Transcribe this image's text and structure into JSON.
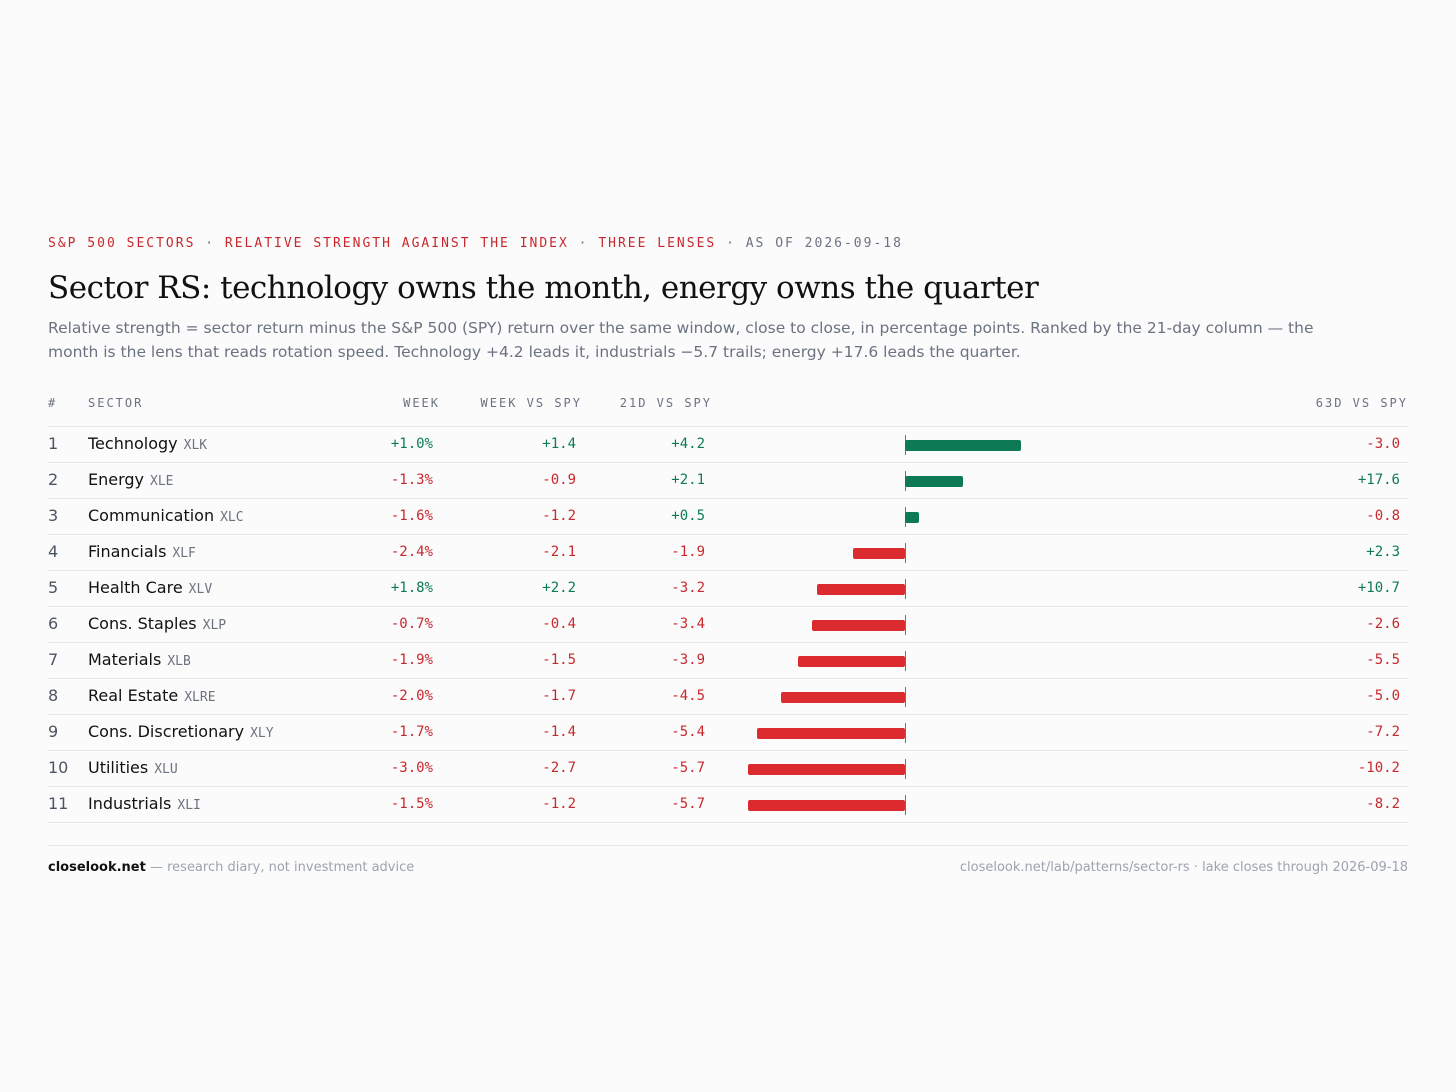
{
  "header": {
    "eyebrow_parts": [
      "S&P 500 SECTORS",
      "RELATIVE STRENGTH AGAINST THE INDEX",
      "THREE LENSES"
    ],
    "separator": "·",
    "as_of": "AS OF 2026-09-18",
    "title": "Sector RS: technology owns the month, energy owns the quarter",
    "subtitle": "Relative strength = sector return minus the S&P 500 (SPY) return over the same window, close to close, in percentage points. Ranked by the 21-day column — the month is the lens that reads rotation speed. Technology +4.2 leads it, industrials −5.7 trails; energy +17.6 leads the quarter."
  },
  "columns": {
    "rank": "#",
    "sector": "SECTOR",
    "week": "WEEK",
    "week_vs_spy": "WEEK VS SPY",
    "d21_vs_spy": "21D VS SPY",
    "d63_vs_spy": "63D VS SPY"
  },
  "chart_data": {
    "type": "table",
    "bar_column": "21d_vs_spy",
    "rows": [
      {
        "rank": "1",
        "sector": "Technology",
        "ticker": "XLK",
        "week": "+1.0%",
        "week_vs_spy": "+1.4",
        "d21": "+4.2",
        "d63": "-3.0",
        "d21_value": 4.2
      },
      {
        "rank": "2",
        "sector": "Energy",
        "ticker": "XLE",
        "week": "-1.3%",
        "week_vs_spy": "-0.9",
        "d21": "+2.1",
        "d63": "+17.6",
        "d21_value": 2.1
      },
      {
        "rank": "3",
        "sector": "Communication",
        "ticker": "XLC",
        "week": "-1.6%",
        "week_vs_spy": "-1.2",
        "d21": "+0.5",
        "d63": "-0.8",
        "d21_value": 0.5
      },
      {
        "rank": "4",
        "sector": "Financials",
        "ticker": "XLF",
        "week": "-2.4%",
        "week_vs_spy": "-2.1",
        "d21": "-1.9",
        "d63": "+2.3",
        "d21_value": -1.9
      },
      {
        "rank": "5",
        "sector": "Health Care",
        "ticker": "XLV",
        "week": "+1.8%",
        "week_vs_spy": "+2.2",
        "d21": "-3.2",
        "d63": "+10.7",
        "d21_value": -3.2
      },
      {
        "rank": "6",
        "sector": "Cons. Staples",
        "ticker": "XLP",
        "week": "-0.7%",
        "week_vs_spy": "-0.4",
        "d21": "-3.4",
        "d63": "-2.6",
        "d21_value": -3.4
      },
      {
        "rank": "7",
        "sector": "Materials",
        "ticker": "XLB",
        "week": "-1.9%",
        "week_vs_spy": "-1.5",
        "d21": "-3.9",
        "d63": "-5.5",
        "d21_value": -3.9
      },
      {
        "rank": "8",
        "sector": "Real Estate",
        "ticker": "XLRE",
        "week": "-2.0%",
        "week_vs_spy": "-1.7",
        "d21": "-4.5",
        "d63": "-5.0",
        "d21_value": -4.5
      },
      {
        "rank": "9",
        "sector": "Cons. Discretionary",
        "ticker": "XLY",
        "week": "-1.7%",
        "week_vs_spy": "-1.4",
        "d21": "-5.4",
        "d63": "-7.2",
        "d21_value": -5.4
      },
      {
        "rank": "10",
        "sector": "Utilities",
        "ticker": "XLU",
        "week": "-3.0%",
        "week_vs_spy": "-2.7",
        "d21": "-5.7",
        "d63": "-10.2",
        "d21_value": -5.7
      },
      {
        "rank": "11",
        "sector": "Industrials",
        "ticker": "XLI",
        "week": "-1.5%",
        "week_vs_spy": "-1.2",
        "d21": "-5.7",
        "d63": "-8.2",
        "d21_value": -5.7
      }
    ],
    "colors": {
      "positive": "#0e7a55",
      "negative": "#dc2b2f"
    }
  },
  "footer": {
    "brand": "closelook.net",
    "tagline": " — research diary, not investment advice",
    "right": "closelook.net/lab/patterns/sector-rs · lake closes through 2026-09-18"
  }
}
